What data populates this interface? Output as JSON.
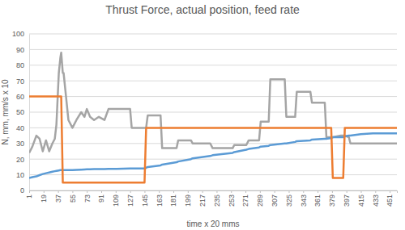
{
  "chart_data": {
    "type": "line",
    "title": "Thrust Force, actual position, feed rate",
    "x_label": "time x 20 mms",
    "y_label": "N, mm, mm/s x 10",
    "x": [
      1,
      5,
      10,
      14,
      18,
      22,
      26,
      30,
      33,
      35,
      38,
      40,
      41,
      43,
      44,
      47,
      50,
      55,
      60,
      66,
      70,
      73,
      77,
      82,
      88,
      95,
      100,
      110,
      127,
      129,
      145,
      147,
      149,
      165,
      167,
      185,
      187,
      203,
      205,
      227,
      230,
      255,
      257,
      272,
      275,
      288,
      290,
      300,
      302,
      320,
      322,
      333,
      335,
      352,
      354,
      370,
      372,
      378,
      380,
      390,
      393,
      395,
      400,
      402,
      415,
      430,
      445,
      460
    ],
    "series": [
      {
        "color": "#a5a5a5",
        "values": [
          24,
          28,
          35,
          33,
          25,
          32,
          25,
          30,
          33,
          42,
          75,
          85,
          88,
          75,
          75,
          60,
          45,
          40,
          45,
          50,
          47,
          52,
          47,
          45,
          47,
          45,
          52,
          52,
          52,
          40,
          40,
          40,
          48,
          48,
          27,
          27,
          32,
          32,
          30,
          30,
          27,
          27,
          29,
          29,
          32,
          32,
          44,
          44,
          71,
          71,
          47,
          47,
          63,
          63,
          56,
          56,
          34,
          34,
          34,
          35,
          35,
          35,
          34,
          30,
          30,
          30,
          30,
          30
        ]
      },
      {
        "color": "#5b9bd5",
        "values": [
          8,
          8.5,
          9,
          9.8,
          10.5,
          11,
          11.5,
          12,
          12.3,
          12.5,
          12.8,
          13,
          13,
          13,
          13,
          13,
          13,
          13,
          13.2,
          13.3,
          13.4,
          13.5,
          13.5,
          13.6,
          13.6,
          13.7,
          13.8,
          13.8,
          14,
          14,
          14,
          14.5,
          15,
          16,
          16.5,
          18,
          18.5,
          20,
          20.5,
          22,
          22.5,
          24,
          24.5,
          26,
          26.5,
          27.5,
          28,
          28.5,
          29,
          30,
          30,
          31,
          31.5,
          32,
          32.5,
          33,
          33,
          33.5,
          34,
          34,
          34,
          34.5,
          35,
          35,
          36,
          36.5,
          36.5,
          36.5
        ]
      },
      {
        "color": "#ed7d31",
        "values": [
          60,
          60,
          60,
          60,
          60,
          60,
          60,
          60,
          60,
          60,
          60,
          60,
          60,
          5,
          5,
          5,
          5,
          5,
          5,
          5,
          5,
          5,
          5,
          5,
          5,
          5,
          5,
          5,
          5,
          5,
          5,
          40,
          40,
          40,
          40,
          40,
          40,
          40,
          40,
          40,
          40,
          40,
          40,
          40,
          40,
          40,
          40,
          40,
          40,
          40,
          40,
          40,
          40,
          40,
          40,
          40,
          40,
          40,
          8,
          8,
          8,
          40,
          40,
          40,
          40,
          40,
          40,
          40
        ]
      }
    ],
    "xlim": [
      1,
      460
    ],
    "xticks": [
      1,
      19,
      37,
      55,
      73,
      91,
      109,
      127,
      145,
      163,
      181,
      199,
      217,
      235,
      253,
      271,
      289,
      307,
      325,
      343,
      361,
      379,
      397,
      415,
      433,
      451
    ],
    "ylim": [
      0,
      100
    ],
    "yticks": [
      0,
      10,
      20,
      30,
      40,
      50,
      60,
      70,
      80,
      90,
      100
    ],
    "grid": true
  }
}
